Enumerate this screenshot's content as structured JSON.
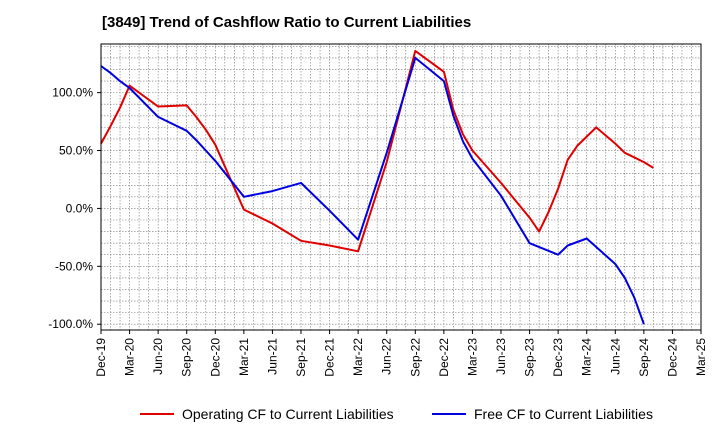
{
  "chart_data": {
    "type": "line",
    "title": "[3849]  Trend of Cashflow Ratio to Current Liabilities",
    "xlabel": "",
    "ylabel": "",
    "ylim": [
      -105,
      142
    ],
    "y_ticks": [
      100,
      50,
      0,
      -50,
      -100
    ],
    "y_tick_labels": [
      "100.0%",
      "50.0%",
      "0.0%",
      "-50.0%",
      "-100.0%"
    ],
    "x_tick_labels": [
      "Dec-19",
      "Mar-20",
      "Jun-20",
      "Sep-20",
      "Dec-20",
      "Mar-21",
      "Jun-21",
      "Sep-21",
      "Dec-21",
      "Mar-22",
      "Jun-22",
      "Sep-22",
      "Dec-22",
      "Mar-23",
      "Jun-23",
      "Sep-23",
      "Dec-23",
      "Mar-24",
      "Jun-24",
      "Sep-24",
      "Dec-24",
      "Mar-25"
    ],
    "grid": true,
    "legend_position": "bottom",
    "series": [
      {
        "name": "Operating CF to Current Liabilities",
        "color": "#e00000",
        "points": [
          [
            "Dec-19",
            56
          ],
          [
            "Jan-20",
            71
          ],
          [
            "Feb-20",
            87
          ],
          [
            "Mar-20",
            106
          ],
          [
            "Jun-20",
            88
          ],
          [
            "Sep-20",
            89
          ],
          [
            "Oct-20",
            79
          ],
          [
            "Nov-20",
            68
          ],
          [
            "Dec-20",
            55
          ],
          [
            "Mar-21",
            -1
          ],
          [
            "Jun-21",
            -13
          ],
          [
            "Sep-21",
            -28
          ],
          [
            "Dec-21",
            -32
          ],
          [
            "Mar-22",
            -37
          ],
          [
            "Jun-22",
            40
          ],
          [
            "Sep-22",
            136
          ],
          [
            "Dec-22",
            118
          ],
          [
            "Jan-23",
            85
          ],
          [
            "Feb-23",
            64
          ],
          [
            "Mar-23",
            50
          ],
          [
            "Jun-23",
            22
          ],
          [
            "Sep-23",
            -8
          ],
          [
            "Oct-23",
            -20
          ],
          [
            "Nov-23",
            -3
          ],
          [
            "Dec-23",
            17
          ],
          [
            "Jan-24",
            42
          ],
          [
            "Feb-24",
            54
          ],
          [
            "Mar-24",
            62
          ],
          [
            "Apr-24",
            70
          ],
          [
            "Jun-24",
            56
          ],
          [
            "Jul-24",
            48
          ],
          [
            "Sep-24",
            40
          ],
          [
            "Oct-24",
            35
          ]
        ]
      },
      {
        "name": "Free CF to Current Liabilities",
        "color": "#0000e0",
        "points": [
          [
            "Dec-19",
            123
          ],
          [
            "Jan-20",
            117
          ],
          [
            "Feb-20",
            110
          ],
          [
            "Mar-20",
            104
          ],
          [
            "Jun-20",
            79
          ],
          [
            "Sep-20",
            67
          ],
          [
            "Oct-20",
            59
          ],
          [
            "Nov-20",
            50
          ],
          [
            "Dec-20",
            41
          ],
          [
            "Mar-21",
            10
          ],
          [
            "Jun-21",
            15
          ],
          [
            "Sep-21",
            22
          ],
          [
            "Dec-21",
            -2
          ],
          [
            "Mar-22",
            -27
          ],
          [
            "Jun-22",
            48
          ],
          [
            "Sep-22",
            130
          ],
          [
            "Dec-22",
            110
          ],
          [
            "Jan-23",
            80
          ],
          [
            "Feb-23",
            58
          ],
          [
            "Mar-23",
            43
          ],
          [
            "Jun-23",
            11
          ],
          [
            "Sep-23",
            -30
          ],
          [
            "Dec-23",
            -40
          ],
          [
            "Jan-24",
            -32
          ],
          [
            "Mar-24",
            -26
          ],
          [
            "Jun-24",
            -48
          ],
          [
            "Jul-24",
            -60
          ],
          [
            "Aug-24",
            -77
          ],
          [
            "Sep-24",
            -100
          ]
        ]
      }
    ]
  }
}
